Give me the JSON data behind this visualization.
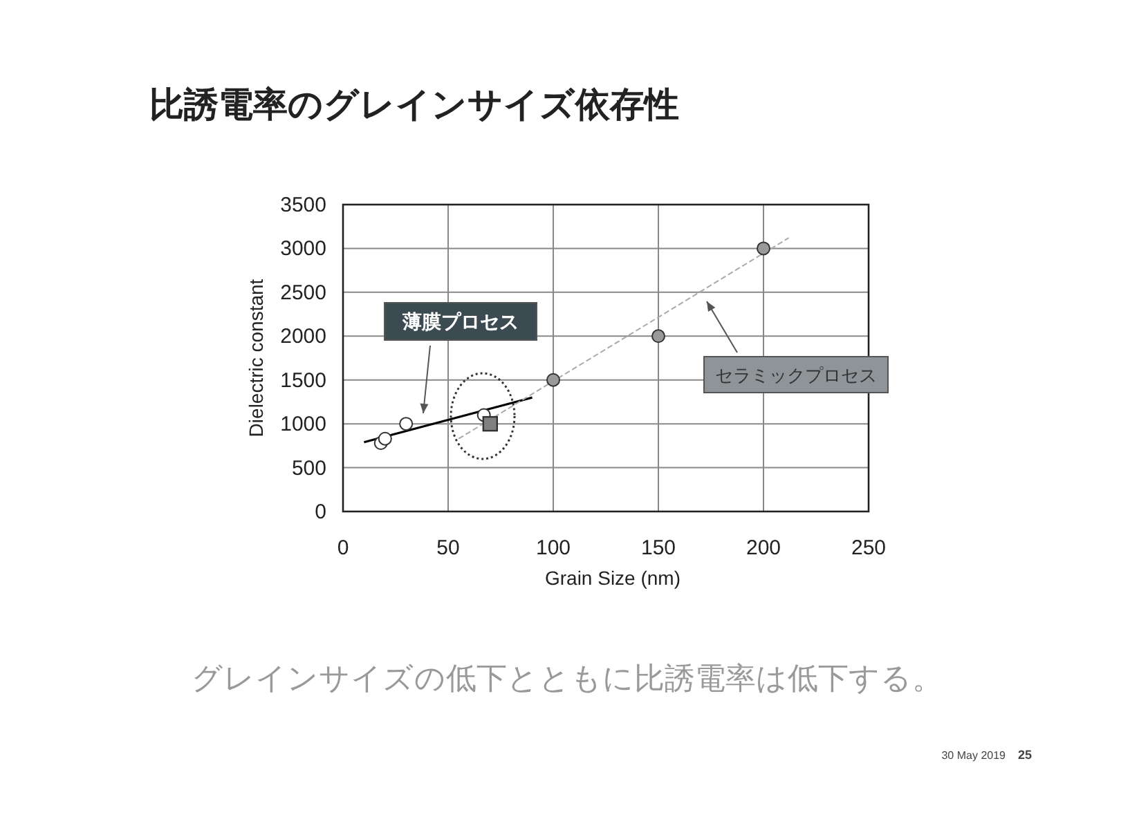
{
  "chart_data": {
    "type": "scatter",
    "title": "比誘電率のグレインサイズ依存性",
    "xlabel": "Grain Size (nm)",
    "ylabel": "Dielectric constant",
    "xlim": [
      0,
      250
    ],
    "ylim": [
      0,
      3500
    ],
    "xticks": [
      0,
      50,
      100,
      150,
      200,
      250
    ],
    "yticks": [
      0,
      500,
      1000,
      1500,
      2000,
      2500,
      3000,
      3500
    ],
    "grid": true,
    "series": [
      {
        "marker": "circle",
        "color": "#ffffff",
        "x": [
          18,
          20,
          30,
          67
        ],
        "values": [
          780,
          830,
          1000,
          1100
        ]
      },
      {
        "marker": "square",
        "color": "#808080",
        "x": [
          70
        ],
        "values": [
          1000
        ]
      },
      {
        "marker": "circle",
        "color": "#999999",
        "x": [
          100,
          150,
          200
        ],
        "values": [
          1500,
          2000,
          3000
        ]
      },
      {
        "type": "line",
        "line_style": "solid",
        "color": "#000000",
        "x": [
          10,
          90
        ],
        "values": [
          790,
          1300
        ]
      },
      {
        "type": "line",
        "line_style": "dashed",
        "color": "#aaaaaa",
        "x": [
          55,
          212
        ],
        "values": [
          830,
          3120
        ]
      }
    ],
    "annotations": [
      "薄膜プロセス",
      "セラミックプロセス",
      "グレインサイズの低下とともに比誘電率は低下する。",
      "30 May 2019",
      "25"
    ]
  }
}
